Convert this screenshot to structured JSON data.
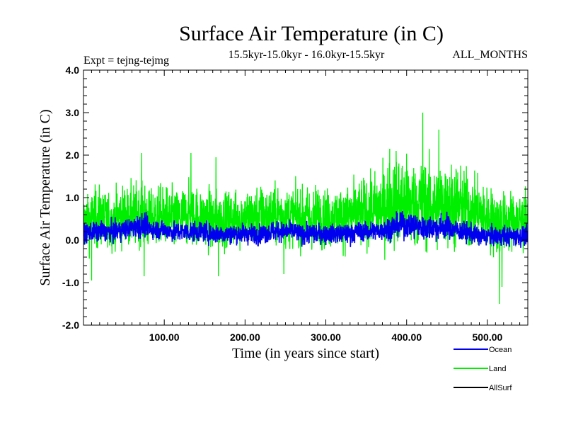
{
  "chart_data": {
    "type": "line",
    "title": "Surface Air Temperature (in C)",
    "subtitle_left": "Expt = tejng-tejmg",
    "subtitle_center": "15.5kyr-15.0kyr - 16.0kyr-15.5kyr",
    "subtitle_right": "ALL_MONTHS",
    "xlabel": "Time (in years since start)",
    "ylabel": "Surface Air Temperature (in C)",
    "xlim": [
      0,
      550
    ],
    "ylim": [
      -2.0,
      4.0
    ],
    "x_ticks": [
      100,
      200,
      300,
      400,
      500
    ],
    "x_tick_labels": [
      "100.00",
      "200.00",
      "300.00",
      "400.00",
      "500.00"
    ],
    "y_ticks": [
      4.0,
      3.0,
      2.0,
      1.0,
      0.0,
      -1.0,
      -2.0
    ],
    "y_tick_labels": [
      "4.0",
      "3.0",
      "2.0",
      "1.0",
      "0.0",
      "-1.0",
      "-2.0"
    ],
    "grid": false,
    "legend_position": "bottom-right-outside",
    "series": [
      {
        "name": "Land",
        "color": "#00ee00",
        "x": [
          0,
          10,
          20,
          30,
          40,
          50,
          60,
          70,
          80,
          90,
          100,
          110,
          120,
          130,
          140,
          150,
          160,
          170,
          180,
          190,
          200,
          210,
          220,
          230,
          240,
          250,
          260,
          270,
          280,
          290,
          300,
          310,
          320,
          330,
          340,
          350,
          360,
          370,
          380,
          390,
          400,
          410,
          420,
          430,
          440,
          450,
          460,
          470,
          480,
          490,
          500,
          510,
          520,
          530,
          540,
          550
        ],
        "values": [
          0.45,
          0.5,
          0.55,
          0.45,
          0.5,
          0.6,
          0.55,
          0.65,
          0.5,
          0.55,
          0.55,
          0.5,
          0.5,
          0.6,
          0.55,
          0.5,
          0.45,
          0.5,
          0.5,
          0.5,
          0.55,
          0.5,
          0.6,
          0.55,
          0.6,
          0.6,
          0.55,
          0.55,
          0.5,
          0.55,
          0.55,
          0.5,
          0.55,
          0.6,
          0.6,
          0.65,
          0.7,
          0.75,
          0.85,
          0.9,
          0.9,
          0.85,
          0.85,
          0.8,
          0.8,
          0.85,
          0.8,
          0.75,
          0.7,
          0.65,
          0.55,
          0.45,
          0.4,
          0.45,
          0.45,
          0.45
        ],
        "amplitude": [
          0.55,
          0.6,
          0.6,
          0.55,
          0.6,
          0.6,
          0.6,
          0.65,
          0.6,
          0.6,
          0.6,
          0.6,
          0.6,
          0.6,
          0.6,
          0.6,
          0.6,
          0.55,
          0.6,
          0.6,
          0.6,
          0.6,
          0.6,
          0.6,
          0.6,
          0.6,
          0.6,
          0.6,
          0.6,
          0.6,
          0.6,
          0.6,
          0.6,
          0.65,
          0.65,
          0.7,
          0.75,
          0.8,
          0.85,
          0.9,
          0.9,
          0.9,
          0.9,
          0.85,
          0.85,
          0.85,
          0.85,
          0.8,
          0.75,
          0.7,
          0.65,
          0.65,
          0.65,
          0.6,
          0.6,
          0.6
        ],
        "extremes": [
          [
            72,
            2.05
          ],
          [
            133,
            2.05
          ],
          [
            164,
            1.95
          ],
          [
            379,
            2.15
          ],
          [
            387,
            2.1
          ],
          [
            420,
            3.0
          ],
          [
            440,
            2.6
          ],
          [
            75,
            -0.85
          ],
          [
            167,
            -0.85
          ],
          [
            515,
            -1.5
          ],
          [
            518,
            -1.1
          ],
          [
            10,
            -0.95
          ],
          [
            248,
            -0.8
          ]
        ]
      },
      {
        "name": "Ocean",
        "color": "#0000ee",
        "x": [
          0,
          10,
          20,
          30,
          40,
          50,
          60,
          70,
          80,
          90,
          100,
          110,
          120,
          130,
          140,
          150,
          160,
          170,
          180,
          190,
          200,
          210,
          220,
          230,
          240,
          250,
          260,
          270,
          280,
          290,
          300,
          310,
          320,
          330,
          340,
          350,
          360,
          370,
          380,
          390,
          400,
          410,
          420,
          430,
          440,
          450,
          460,
          470,
          480,
          490,
          500,
          510,
          520,
          530,
          540,
          550
        ],
        "values": [
          0.15,
          0.2,
          0.2,
          0.2,
          0.2,
          0.25,
          0.3,
          0.35,
          0.3,
          0.25,
          0.25,
          0.2,
          0.2,
          0.2,
          0.2,
          0.2,
          0.15,
          0.15,
          0.15,
          0.15,
          0.15,
          0.15,
          0.15,
          0.2,
          0.2,
          0.2,
          0.2,
          0.15,
          0.15,
          0.15,
          0.15,
          0.15,
          0.15,
          0.15,
          0.2,
          0.2,
          0.2,
          0.25,
          0.3,
          0.35,
          0.35,
          0.35,
          0.3,
          0.3,
          0.3,
          0.3,
          0.25,
          0.2,
          0.15,
          0.1,
          0.1,
          0.1,
          0.1,
          0.1,
          0.1,
          0.1
        ],
        "amplitude": [
          0.2,
          0.2,
          0.2,
          0.2,
          0.2,
          0.2,
          0.2,
          0.25,
          0.2,
          0.2,
          0.2,
          0.2,
          0.2,
          0.2,
          0.2,
          0.2,
          0.2,
          0.2,
          0.2,
          0.2,
          0.2,
          0.2,
          0.2,
          0.2,
          0.2,
          0.2,
          0.2,
          0.2,
          0.2,
          0.2,
          0.2,
          0.2,
          0.2,
          0.2,
          0.2,
          0.2,
          0.2,
          0.2,
          0.25,
          0.25,
          0.25,
          0.25,
          0.25,
          0.25,
          0.25,
          0.25,
          0.2,
          0.2,
          0.2,
          0.2,
          0.2,
          0.2,
          0.2,
          0.2,
          0.2,
          0.2
        ]
      },
      {
        "name": "AllSurf",
        "color": "#000000",
        "x": [],
        "values": []
      }
    ]
  }
}
